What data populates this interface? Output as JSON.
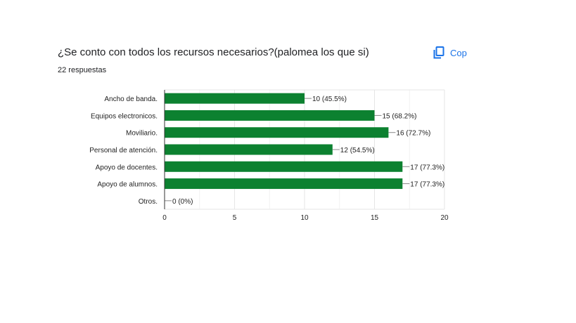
{
  "header": {
    "title": "¿Se conto con todos los recursos necesarios?(palomea los que si)",
    "responses": "22 respuestas",
    "copy_label": "Cop"
  },
  "colors": {
    "bar": "#0c8130",
    "grid": "#e6e6e6",
    "axis": "#333333",
    "text": "#222222",
    "accent": "#1a73e8"
  },
  "chart_data": {
    "type": "bar",
    "orientation": "horizontal",
    "categories": [
      "Ancho de banda.",
      "Equipos electronicos.",
      "Moviliario.",
      "Personal de atención.",
      "Apoyo de docentes.",
      "Apoyo de alumnos.",
      "Otros."
    ],
    "values": [
      10,
      15,
      16,
      12,
      17,
      17,
      0
    ],
    "data_labels": [
      "10 (45.5%)",
      "15 (68.2%)",
      "16 (72.7%)",
      "12 (54.5%)",
      "17 (77.3%)",
      "17 (77.3%)",
      "0 (0%)"
    ],
    "xlim": [
      0,
      20
    ],
    "x_ticks": [
      "0",
      "5",
      "10",
      "15",
      "20"
    ],
    "grid": true,
    "title": "",
    "xlabel": "",
    "ylabel": ""
  }
}
